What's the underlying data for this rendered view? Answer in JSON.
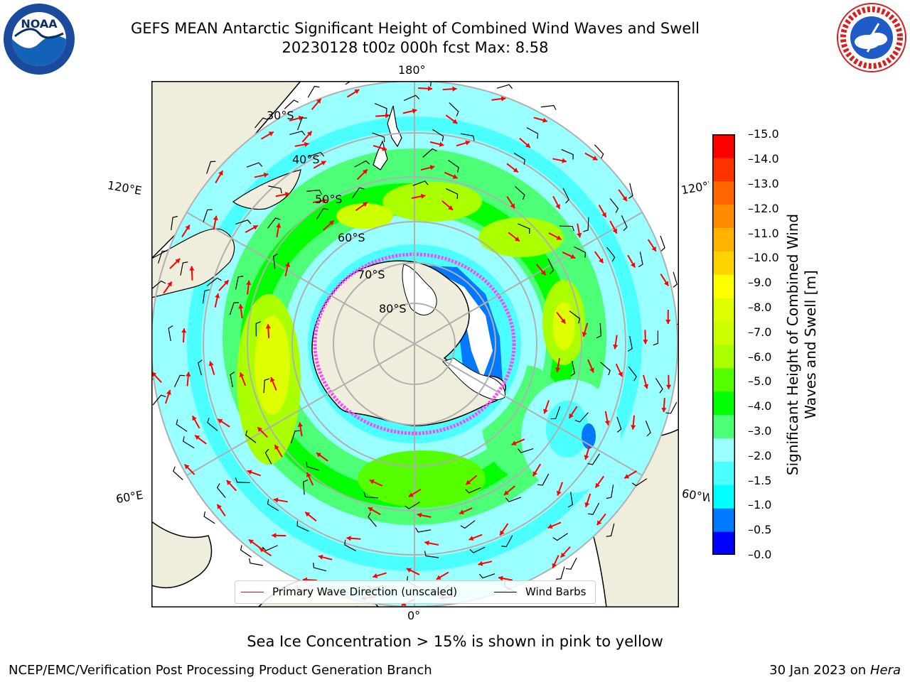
{
  "header": {
    "title_line1": "GEFS MEAN Antarctic Significant Height of Combined Wind Waves and Swell",
    "title_line2": "20230128 t00z 000h fcst   Max: 8.58"
  },
  "logos": {
    "left": "NOAA",
    "right": "NATIONAL WEATHER SERVICE"
  },
  "map": {
    "projection": "south-polar-stereographic",
    "longitude_labels": [
      "180°",
      "120°E",
      "120°W",
      "60°E",
      "60°W",
      "0°"
    ],
    "latitude_labels": [
      "30°S",
      "40°S",
      "50°S",
      "60°S",
      "70°S",
      "80°S"
    ]
  },
  "colorbar": {
    "label": "Significant Height of Combined Wind Waves and Swell [m]",
    "ticks": [
      "0.0",
      "0.5",
      "1.0",
      "1.5",
      "2.0",
      "3.0",
      "4.0",
      "5.0",
      "6.0",
      "7.0",
      "8.0",
      "9.0",
      "10.0",
      "11.0",
      "12.0",
      "13.0",
      "14.0",
      "15.0"
    ],
    "colors": [
      "#0000ff",
      "#0078ff",
      "#00ffff",
      "#4cffff",
      "#99ffff",
      "#4cff77",
      "#00ff00",
      "#55ff00",
      "#aaff00",
      "#ccff00",
      "#ddff00",
      "#ffff00",
      "#ffd300",
      "#ffb300",
      "#ff8c00",
      "#ff6600",
      "#ff3300",
      "#ff0000"
    ]
  },
  "legend": {
    "primary_wave": "Primary Wave Direction (unscaled)",
    "wind_barbs": "Wind Barbs",
    "primary_wave_color": "#ff0000",
    "wind_barbs_color": "#000000"
  },
  "note": "Sea Ice Concentration > 15% is shown in pink to yellow",
  "footer": {
    "left": "NCEP/EMC/Verification Post Processing Product Generation Branch",
    "right_date": "30 Jan 2023 on",
    "right_host": "Hera"
  }
}
